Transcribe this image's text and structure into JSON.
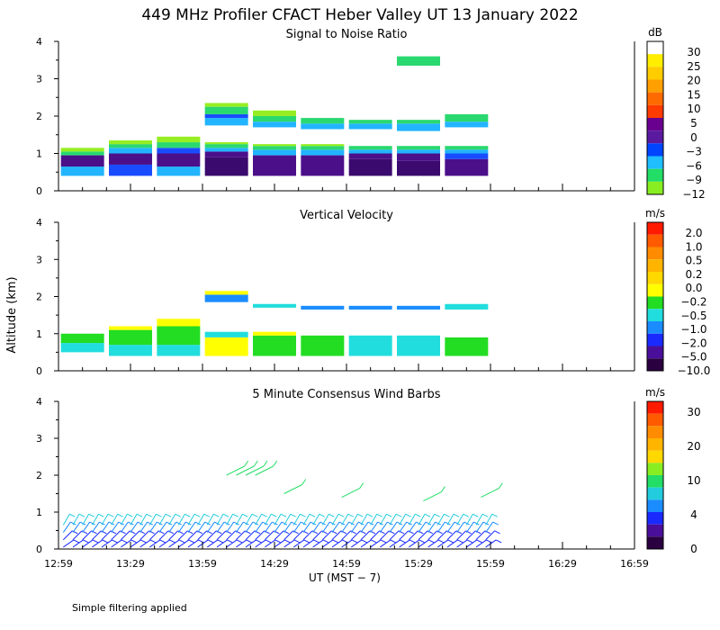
{
  "title": "449 MHz Profiler CFACT Heber Valley UT 13 January 2022",
  "footer_note": "Simple filtering applied",
  "x_axis": {
    "label": "UT  (MST − 7)",
    "ticks": [
      "12:59",
      "13:29",
      "13:59",
      "14:29",
      "14:59",
      "15:29",
      "15:59",
      "16:29",
      "16:59"
    ],
    "range_minutes": [
      0,
      240
    ]
  },
  "y_axis": {
    "label": "Altitude (km)",
    "ticks": [
      "0",
      "1",
      "2",
      "3",
      "4"
    ],
    "range_km": [
      0,
      4
    ]
  },
  "chart_data": [
    {
      "type": "heatmap",
      "title": "Signal to Noise Ratio",
      "units": "dB",
      "colorbar_labels": [
        "30",
        "25",
        "20",
        "15",
        "10",
        "5",
        "0",
        "−3",
        "−6",
        "−9",
        "−12"
      ],
      "colorbar_colors": [
        "#ffffff",
        "#ffee00",
        "#ffcc00",
        "#ffa000",
        "#ff6a00",
        "#ff3b00",
        "#6a0090",
        "#5a1aa0",
        "#0044ff",
        "#1ebeff",
        "#22dd66",
        "#88ee22"
      ],
      "palette": {
        "purple": "#4b0f8a",
        "darkpurple": "#3a0a6e",
        "blue": "#1a4cff",
        "cyan": "#22b4ff",
        "green": "#2ad870",
        "lime": "#96ee22"
      },
      "blocks": [
        {
          "t0": 1,
          "t1": 19,
          "layers": [
            {
              "h0": 0.4,
              "h1": 0.65,
              "c": "cyan"
            },
            {
              "h0": 0.65,
              "h1": 0.95,
              "c": "purple"
            },
            {
              "h0": 0.95,
              "h1": 1.05,
              "c": "green"
            },
            {
              "h0": 1.05,
              "h1": 1.15,
              "c": "lime"
            }
          ]
        },
        {
          "t0": 21,
          "t1": 39,
          "layers": [
            {
              "h0": 0.4,
              "h1": 0.7,
              "c": "blue"
            },
            {
              "h0": 0.7,
              "h1": 1.0,
              "c": "purple"
            },
            {
              "h0": 1.0,
              "h1": 1.15,
              "c": "cyan"
            },
            {
              "h0": 1.15,
              "h1": 1.25,
              "c": "green"
            },
            {
              "h0": 1.25,
              "h1": 1.35,
              "c": "lime"
            }
          ]
        },
        {
          "t0": 41,
          "t1": 59,
          "layers": [
            {
              "h0": 0.4,
              "h1": 0.65,
              "c": "cyan"
            },
            {
              "h0": 0.65,
              "h1": 1.0,
              "c": "purple"
            },
            {
              "h0": 1.0,
              "h1": 1.15,
              "c": "blue"
            },
            {
              "h0": 1.15,
              "h1": 1.3,
              "c": "green"
            },
            {
              "h0": 1.3,
              "h1": 1.45,
              "c": "lime"
            }
          ]
        },
        {
          "t0": 61,
          "t1": 79,
          "layers": [
            {
              "h0": 0.4,
              "h1": 0.9,
              "c": "darkpurple"
            },
            {
              "h0": 0.9,
              "h1": 1.05,
              "c": "purple"
            },
            {
              "h0": 1.05,
              "h1": 1.15,
              "c": "cyan"
            },
            {
              "h0": 1.15,
              "h1": 1.25,
              "c": "green"
            },
            {
              "h0": 1.25,
              "h1": 1.3,
              "c": "lime"
            },
            {
              "h0": 1.75,
              "h1": 1.95,
              "c": "cyan"
            },
            {
              "h0": 1.95,
              "h1": 2.05,
              "c": "blue"
            },
            {
              "h0": 2.05,
              "h1": 2.25,
              "c": "green"
            },
            {
              "h0": 2.25,
              "h1": 2.35,
              "c": "lime"
            }
          ]
        },
        {
          "t0": 81,
          "t1": 99,
          "layers": [
            {
              "h0": 0.4,
              "h1": 0.95,
              "c": "purple"
            },
            {
              "h0": 0.95,
              "h1": 1.1,
              "c": "cyan"
            },
            {
              "h0": 1.1,
              "h1": 1.2,
              "c": "green"
            },
            {
              "h0": 1.2,
              "h1": 1.25,
              "c": "lime"
            },
            {
              "h0": 1.7,
              "h1": 1.85,
              "c": "cyan"
            },
            {
              "h0": 1.85,
              "h1": 2.0,
              "c": "green"
            },
            {
              "h0": 2.0,
              "h1": 2.15,
              "c": "lime"
            }
          ]
        },
        {
          "t0": 101,
          "t1": 119,
          "layers": [
            {
              "h0": 0.4,
              "h1": 0.95,
              "c": "purple"
            },
            {
              "h0": 0.95,
              "h1": 1.1,
              "c": "cyan"
            },
            {
              "h0": 1.1,
              "h1": 1.2,
              "c": "green"
            },
            {
              "h0": 1.2,
              "h1": 1.25,
              "c": "lime"
            },
            {
              "h0": 1.65,
              "h1": 1.8,
              "c": "cyan"
            },
            {
              "h0": 1.8,
              "h1": 1.95,
              "c": "green"
            }
          ]
        },
        {
          "t0": 121,
          "t1": 139,
          "layers": [
            {
              "h0": 0.4,
              "h1": 0.85,
              "c": "darkpurple"
            },
            {
              "h0": 0.85,
              "h1": 1.0,
              "c": "purple"
            },
            {
              "h0": 1.0,
              "h1": 1.1,
              "c": "cyan"
            },
            {
              "h0": 1.1,
              "h1": 1.2,
              "c": "green"
            },
            {
              "h0": 1.65,
              "h1": 1.8,
              "c": "cyan"
            },
            {
              "h0": 1.8,
              "h1": 1.9,
              "c": "green"
            }
          ]
        },
        {
          "t0": 141,
          "t1": 159,
          "layers": [
            {
              "h0": 0.4,
              "h1": 0.8,
              "c": "darkpurple"
            },
            {
              "h0": 0.8,
              "h1": 1.0,
              "c": "purple"
            },
            {
              "h0": 1.0,
              "h1": 1.1,
              "c": "cyan"
            },
            {
              "h0": 1.1,
              "h1": 1.2,
              "c": "green"
            },
            {
              "h0": 1.6,
              "h1": 1.8,
              "c": "cyan"
            },
            {
              "h0": 1.8,
              "h1": 1.9,
              "c": "green"
            },
            {
              "h0": 3.35,
              "h1": 3.6,
              "c": "green"
            }
          ]
        },
        {
          "t0": 161,
          "t1": 179,
          "layers": [
            {
              "h0": 0.4,
              "h1": 0.85,
              "c": "purple"
            },
            {
              "h0": 0.85,
              "h1": 1.0,
              "c": "blue"
            },
            {
              "h0": 1.0,
              "h1": 1.1,
              "c": "cyan"
            },
            {
              "h0": 1.1,
              "h1": 1.2,
              "c": "green"
            },
            {
              "h0": 1.7,
              "h1": 1.85,
              "c": "cyan"
            },
            {
              "h0": 1.85,
              "h1": 2.05,
              "c": "green"
            }
          ]
        }
      ]
    },
    {
      "type": "heatmap",
      "title": "Vertical Velocity",
      "units": "m/s",
      "colorbar_labels": [
        "2.0",
        "1.0",
        "0.5",
        "0.2",
        "0.0",
        "−0.2",
        "−0.5",
        "−1.0",
        "−2.0",
        "−5.0",
        "−10.0"
      ],
      "colorbar_colors": [
        "#ff1a00",
        "#ff5a00",
        "#ff8c00",
        "#ffb400",
        "#ffd800",
        "#ffff00",
        "#22dd22",
        "#22dddd",
        "#1a8cff",
        "#1a2aff",
        "#4a0f9a",
        "#2a0040"
      ],
      "palette": {
        "green": "#22dd22",
        "yellow": "#ffff00",
        "cyan": "#22dddd",
        "blue": "#1a8cff",
        "orange": "#ffb400"
      },
      "blocks": [
        {
          "t0": 1,
          "t1": 19,
          "layers": [
            {
              "h0": 0.5,
              "h1": 0.75,
              "c": "cyan"
            },
            {
              "h0": 0.75,
              "h1": 1.0,
              "c": "green"
            }
          ]
        },
        {
          "t0": 21,
          "t1": 39,
          "layers": [
            {
              "h0": 0.4,
              "h1": 0.7,
              "c": "cyan"
            },
            {
              "h0": 0.7,
              "h1": 1.1,
              "c": "green"
            },
            {
              "h0": 1.1,
              "h1": 1.2,
              "c": "yellow"
            }
          ]
        },
        {
          "t0": 41,
          "t1": 59,
          "layers": [
            {
              "h0": 0.4,
              "h1": 0.7,
              "c": "cyan"
            },
            {
              "h0": 0.7,
              "h1": 1.2,
              "c": "green"
            },
            {
              "h0": 1.2,
              "h1": 1.4,
              "c": "yellow"
            }
          ]
        },
        {
          "t0": 61,
          "t1": 79,
          "layers": [
            {
              "h0": 0.4,
              "h1": 0.9,
              "c": "yellow"
            },
            {
              "h0": 0.9,
              "h1": 1.05,
              "c": "cyan"
            },
            {
              "h0": 1.85,
              "h1": 2.05,
              "c": "blue"
            },
            {
              "h0": 2.05,
              "h1": 2.15,
              "c": "yellow"
            }
          ]
        },
        {
          "t0": 81,
          "t1": 99,
          "layers": [
            {
              "h0": 0.4,
              "h1": 0.95,
              "c": "green"
            },
            {
              "h0": 0.95,
              "h1": 1.05,
              "c": "yellow"
            },
            {
              "h0": 1.7,
              "h1": 1.8,
              "c": "cyan"
            }
          ]
        },
        {
          "t0": 101,
          "t1": 119,
          "layers": [
            {
              "h0": 0.4,
              "h1": 0.95,
              "c": "green"
            },
            {
              "h0": 1.65,
              "h1": 1.75,
              "c": "blue"
            }
          ]
        },
        {
          "t0": 121,
          "t1": 139,
          "layers": [
            {
              "h0": 0.4,
              "h1": 0.95,
              "c": "cyan"
            },
            {
              "h0": 1.65,
              "h1": 1.75,
              "c": "blue"
            }
          ]
        },
        {
          "t0": 141,
          "t1": 159,
          "layers": [
            {
              "h0": 0.4,
              "h1": 0.95,
              "c": "cyan"
            },
            {
              "h0": 1.65,
              "h1": 1.75,
              "c": "blue"
            }
          ]
        },
        {
          "t0": 161,
          "t1": 179,
          "layers": [
            {
              "h0": 0.4,
              "h1": 0.9,
              "c": "green"
            },
            {
              "h0": 1.65,
              "h1": 1.8,
              "c": "cyan"
            }
          ]
        }
      ]
    },
    {
      "type": "scatter",
      "title": "5 Minute Consensus Wind Barbs",
      "units": "m/s",
      "colorbar_labels": [
        "30",
        "20",
        "10",
        "4",
        "0"
      ],
      "colorbar_colors": [
        "#ff1a00",
        "#ff5a00",
        "#ff8c00",
        "#ffb400",
        "#ffd800",
        "#88ee22",
        "#22dd66",
        "#22ccdd",
        "#1a8cff",
        "#1a2aff",
        "#4a0f9a",
        "#2a0040"
      ],
      "palette": {
        "darkblue": "#1a2aff",
        "blue": "#1a8cff",
        "cyan": "#22ccdd",
        "green": "#22dd66"
      },
      "barb_times_min": [
        2,
        6,
        10,
        14,
        18,
        22,
        26,
        30,
        34,
        38,
        42,
        46,
        50,
        54,
        58,
        62,
        66,
        70,
        74,
        78,
        82,
        86,
        90,
        94,
        98,
        102,
        106,
        110,
        114,
        118,
        122,
        126,
        130,
        134,
        138,
        142,
        146,
        150,
        154,
        158,
        162,
        166,
        170,
        174,
        178
      ],
      "barb_altitudes_km": [
        0.05,
        0.25,
        0.45,
        0.65
      ],
      "upper_barbs": [
        {
          "t": 70,
          "h": 2.0
        },
        {
          "t": 74,
          "h": 2.0
        },
        {
          "t": 78,
          "h": 2.0
        },
        {
          "t": 82,
          "h": 2.0
        },
        {
          "t": 94,
          "h": 1.5
        },
        {
          "t": 118,
          "h": 1.4
        },
        {
          "t": 152,
          "h": 1.3
        },
        {
          "t": 176,
          "h": 1.4
        }
      ]
    }
  ]
}
